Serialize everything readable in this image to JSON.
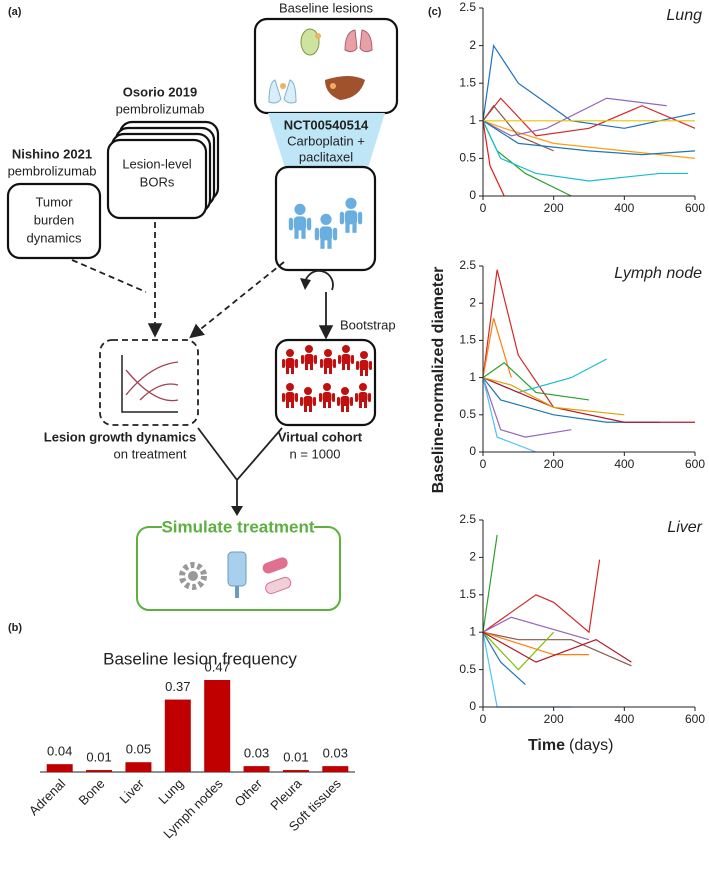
{
  "diagram": {
    "label": "(a)",
    "baseline": {
      "title": "Baseline lesions"
    },
    "trial": {
      "id": "NCT00540514",
      "lines": [
        "Carboplatin +",
        "paclitaxel"
      ]
    },
    "osorio": {
      "title": "Osorio 2019",
      "drug": "pembrolizumab",
      "lines": [
        "Lesion-level",
        "BORs"
      ]
    },
    "nishino": {
      "title": "Nishino 2021",
      "drug": "pembrolizumab",
      "lines": [
        "Tumor",
        "burden",
        "dynamics"
      ]
    },
    "bootstrap": "Bootstrap",
    "growth": {
      "title": "Lesion growth dynamics",
      "sub": "on treatment"
    },
    "cohort": {
      "title": "Virtual cohort",
      "sub": "n = 1000"
    },
    "simulate": "Simulate treatment"
  },
  "panel_b_label": "(b)",
  "panel_c": {
    "label": "(c)",
    "ylabel": "Baseline-normalized diameter",
    "xlabel": "Time",
    "xlabel_unit": "(days)"
  },
  "chart_data": [
    {
      "type": "bar",
      "title": "Baseline lesion frequency",
      "color": "#c00000",
      "categories": [
        "Adrenal",
        "Bone",
        "Liver",
        "Lung",
        "Lymph nodes",
        "Other",
        "Pleura",
        "Soft tissues"
      ],
      "values": [
        0.04,
        0.01,
        0.05,
        0.37,
        0.47,
        0.03,
        0.01,
        0.03
      ]
    },
    {
      "type": "line",
      "title": "Lung",
      "xlim": [
        0,
        600
      ],
      "ylim": [
        0,
        2.5
      ],
      "xticks": [
        0,
        200,
        400,
        600
      ],
      "yticks": [
        0,
        0.5,
        1,
        1.5,
        2,
        2.5
      ],
      "series": [
        {
          "color": "#1f6fc4",
          "x": [
            0,
            30,
            100,
            250,
            400,
            500,
            600
          ],
          "values": [
            1,
            2.0,
            1.5,
            1.0,
            0.9,
            1.0,
            1.1
          ]
        },
        {
          "color": "#d62728",
          "x": [
            0,
            50,
            150,
            300,
            450,
            600
          ],
          "values": [
            1,
            1.3,
            0.8,
            0.9,
            1.2,
            0.9
          ]
        },
        {
          "color": "#2ca02c",
          "x": [
            0,
            40,
            120,
            250
          ],
          "values": [
            1,
            0.6,
            0.3,
            0
          ]
        },
        {
          "color": "#ff9f0e",
          "x": [
            0,
            60,
            200,
            400,
            600
          ],
          "values": [
            1,
            0.9,
            0.7,
            0.6,
            0.5
          ]
        },
        {
          "color": "#9467bd",
          "x": [
            0,
            80,
            180,
            350,
            520
          ],
          "values": [
            1,
            0.8,
            0.9,
            1.3,
            1.2
          ]
        },
        {
          "color": "#17becf",
          "x": [
            0,
            50,
            150,
            300,
            500,
            580
          ],
          "values": [
            1,
            0.5,
            0.3,
            0.2,
            0.3,
            0.3
          ]
        },
        {
          "color": "#8c564b",
          "x": [
            0,
            30,
            100,
            200
          ],
          "values": [
            1,
            1.2,
            0.8,
            0.6
          ]
        },
        {
          "color": "#1f77b4",
          "x": [
            0,
            100,
            300,
            450,
            600
          ],
          "values": [
            1,
            0.7,
            0.6,
            0.55,
            0.6
          ]
        },
        {
          "color": "#e6c400",
          "x": [
            0,
            200,
            400,
            600
          ],
          "values": [
            1,
            1.0,
            1.0,
            1.0
          ]
        },
        {
          "color": "#e41a1c",
          "x": [
            0,
            20,
            60
          ],
          "values": [
            1,
            0.4,
            0
          ]
        }
      ]
    },
    {
      "type": "line",
      "title": "Lymph node",
      "xlim": [
        0,
        600
      ],
      "ylim": [
        0,
        2.5
      ],
      "xticks": [
        0,
        200,
        400,
        600
      ],
      "yticks": [
        0,
        0.5,
        1,
        1.5,
        2,
        2.5
      ],
      "series": [
        {
          "color": "#d62728",
          "x": [
            0,
            40,
            100,
            200
          ],
          "values": [
            1,
            2.45,
            1.3,
            0.6
          ]
        },
        {
          "color": "#ff7f0e",
          "x": [
            0,
            30,
            80
          ],
          "values": [
            1,
            1.8,
            1.0
          ]
        },
        {
          "color": "#1f77b4",
          "x": [
            0,
            50,
            200,
            350,
            500
          ],
          "values": [
            1,
            0.7,
            0.5,
            0.4,
            0.4
          ]
        },
        {
          "color": "#2ca02c",
          "x": [
            0,
            60,
            150,
            300
          ],
          "values": [
            1,
            1.2,
            0.8,
            0.7
          ]
        },
        {
          "color": "#17becf",
          "x": [
            0,
            100,
            250,
            350
          ],
          "values": [
            1,
            0.8,
            1.0,
            1.25
          ]
        },
        {
          "color": "#b2182b",
          "x": [
            0,
            200,
            400,
            600
          ],
          "values": [
            1,
            0.6,
            0.4,
            0.4
          ]
        },
        {
          "color": "#9467bd",
          "x": [
            0,
            50,
            120,
            250
          ],
          "values": [
            1,
            0.3,
            0.2,
            0.3
          ]
        },
        {
          "color": "#e6a000",
          "x": [
            0,
            80,
            200,
            400
          ],
          "values": [
            1,
            0.9,
            0.6,
            0.5
          ]
        },
        {
          "color": "#4fc3f7",
          "x": [
            0,
            40,
            150
          ],
          "values": [
            1,
            0.2,
            0
          ]
        }
      ]
    },
    {
      "type": "line",
      "title": "Liver",
      "xlim": [
        0,
        600
      ],
      "ylim": [
        0,
        2.5
      ],
      "xticks": [
        0,
        200,
        400,
        600
      ],
      "yticks": [
        0,
        0.5,
        1,
        1.5,
        2,
        2.5
      ],
      "series": [
        {
          "color": "#2ca02c",
          "x": [
            0,
            40
          ],
          "values": [
            1,
            2.3
          ]
        },
        {
          "color": "#d62728",
          "x": [
            0,
            150,
            200,
            300,
            330
          ],
          "values": [
            1,
            1.5,
            1.4,
            1.0,
            1.97
          ]
        },
        {
          "color": "#8c564b",
          "x": [
            0,
            100,
            250,
            420
          ],
          "values": [
            1,
            0.9,
            0.9,
            0.55
          ]
        },
        {
          "color": "#4fc3f7",
          "x": [
            0,
            40,
            170,
            250
          ],
          "values": [
            1,
            0,
            0,
            0
          ]
        },
        {
          "color": "#ff7f0e",
          "x": [
            0,
            200,
            300
          ],
          "values": [
            1,
            0.7,
            0.7
          ]
        },
        {
          "color": "#1f77b4",
          "x": [
            0,
            50,
            120
          ],
          "values": [
            1,
            0.6,
            0.3
          ]
        },
        {
          "color": "#9467bd",
          "x": [
            0,
            80,
            300
          ],
          "values": [
            1,
            1.2,
            0.9
          ]
        },
        {
          "color": "#7cc000",
          "x": [
            0,
            100,
            200
          ],
          "values": [
            1,
            0.5,
            1.0
          ]
        },
        {
          "color": "#b2182b",
          "x": [
            0,
            150,
            320,
            420
          ],
          "values": [
            1,
            0.6,
            0.9,
            0.6
          ]
        }
      ]
    }
  ]
}
